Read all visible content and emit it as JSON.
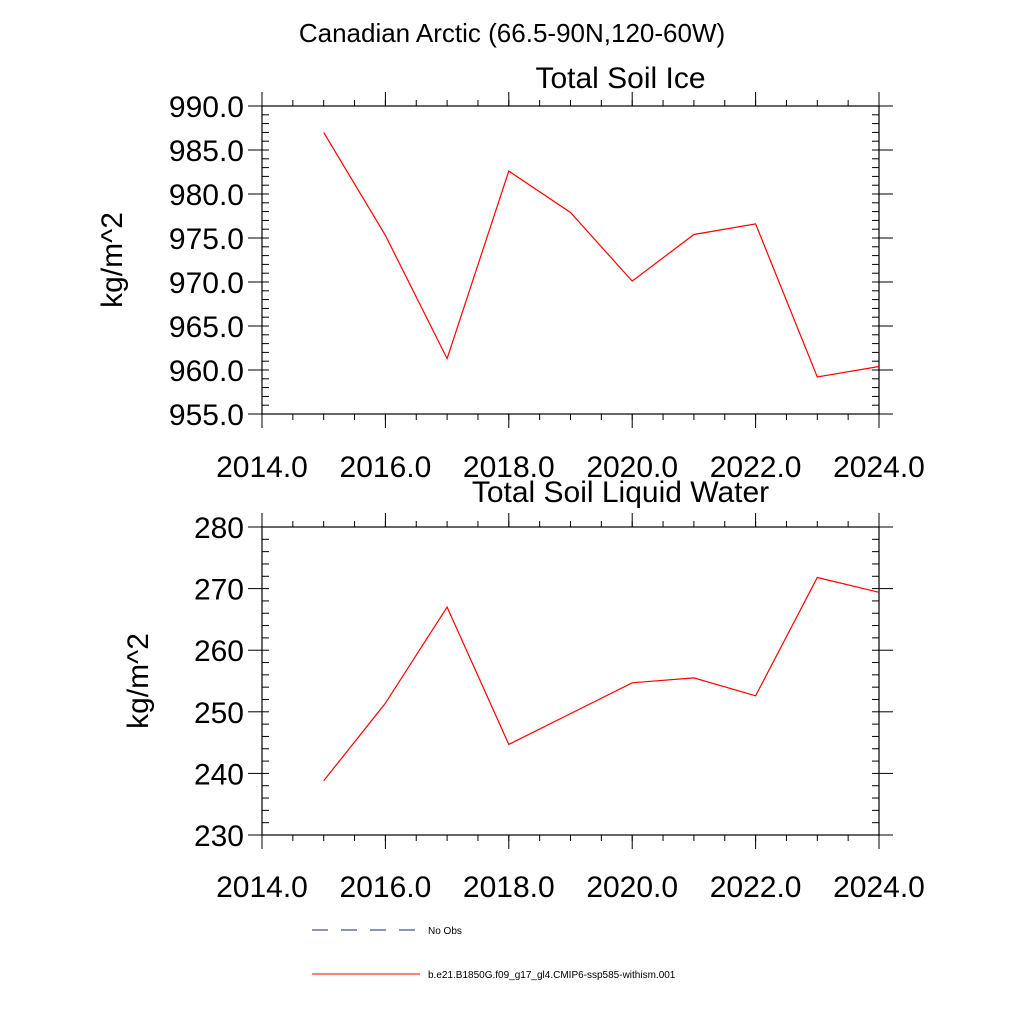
{
  "figure_title": "Canadian Arctic (66.5-90N,120-60W)",
  "chart_data": [
    {
      "type": "line",
      "title": "Total Soil Ice",
      "xlabel": "",
      "ylabel": "kg/m^2",
      "xlim": [
        2014,
        2024
      ],
      "ylim": [
        955,
        990
      ],
      "xticks": [
        2014,
        2016,
        2018,
        2020,
        2022,
        2024
      ],
      "xtick_labels": [
        "2014.0",
        "2016.0",
        "2018.0",
        "2020.0",
        "2022.0",
        "2024.0"
      ],
      "yticks": [
        955,
        960,
        965,
        970,
        975,
        980,
        985,
        990
      ],
      "ytick_labels": [
        "955.0",
        "960.0",
        "965.0",
        "970.0",
        "975.0",
        "980.0",
        "985.0",
        "990.0"
      ],
      "x": [
        2015,
        2016,
        2017,
        2018,
        2019,
        2020,
        2021,
        2022,
        2023,
        2024
      ],
      "series": [
        {
          "name": "b.e21.B1850G.f09_g17_gl4.CMIP6-ssp585-withism.001",
          "color": "#ff0000",
          "values": [
            987.0,
            975.3,
            961.3,
            982.6,
            977.9,
            970.1,
            975.4,
            976.6,
            959.2,
            960.4
          ]
        }
      ]
    },
    {
      "type": "line",
      "title": "Total Soil Liquid Water",
      "xlabel": "",
      "ylabel": "kg/m^2",
      "xlim": [
        2014,
        2024
      ],
      "ylim": [
        230,
        280
      ],
      "xticks": [
        2014,
        2016,
        2018,
        2020,
        2022,
        2024
      ],
      "xtick_labels": [
        "2014.0",
        "2016.0",
        "2018.0",
        "2020.0",
        "2022.0",
        "2024.0"
      ],
      "yticks": [
        230,
        240,
        250,
        260,
        270,
        280
      ],
      "ytick_labels": [
        "230",
        "240",
        "250",
        "260",
        "270",
        "280"
      ],
      "x": [
        2015,
        2016,
        2017,
        2018,
        2019,
        2020,
        2021,
        2022,
        2023,
        2024
      ],
      "series": [
        {
          "name": "b.e21.B1850G.f09_g17_gl4.CMIP6-ssp585-withism.001",
          "color": "#ff0000",
          "values": [
            238.8,
            251.4,
            267.0,
            244.7,
            249.7,
            254.7,
            255.5,
            252.6,
            271.8,
            269.4
          ]
        }
      ]
    }
  ],
  "legend": [
    {
      "label": "No Obs",
      "color": "#1a2a6c",
      "style": "dashed"
    },
    {
      "label": "b.e21.B1850G.f09_g17_gl4.CMIP6-ssp585-withism.001",
      "color": "#ff0000",
      "style": "solid"
    }
  ]
}
